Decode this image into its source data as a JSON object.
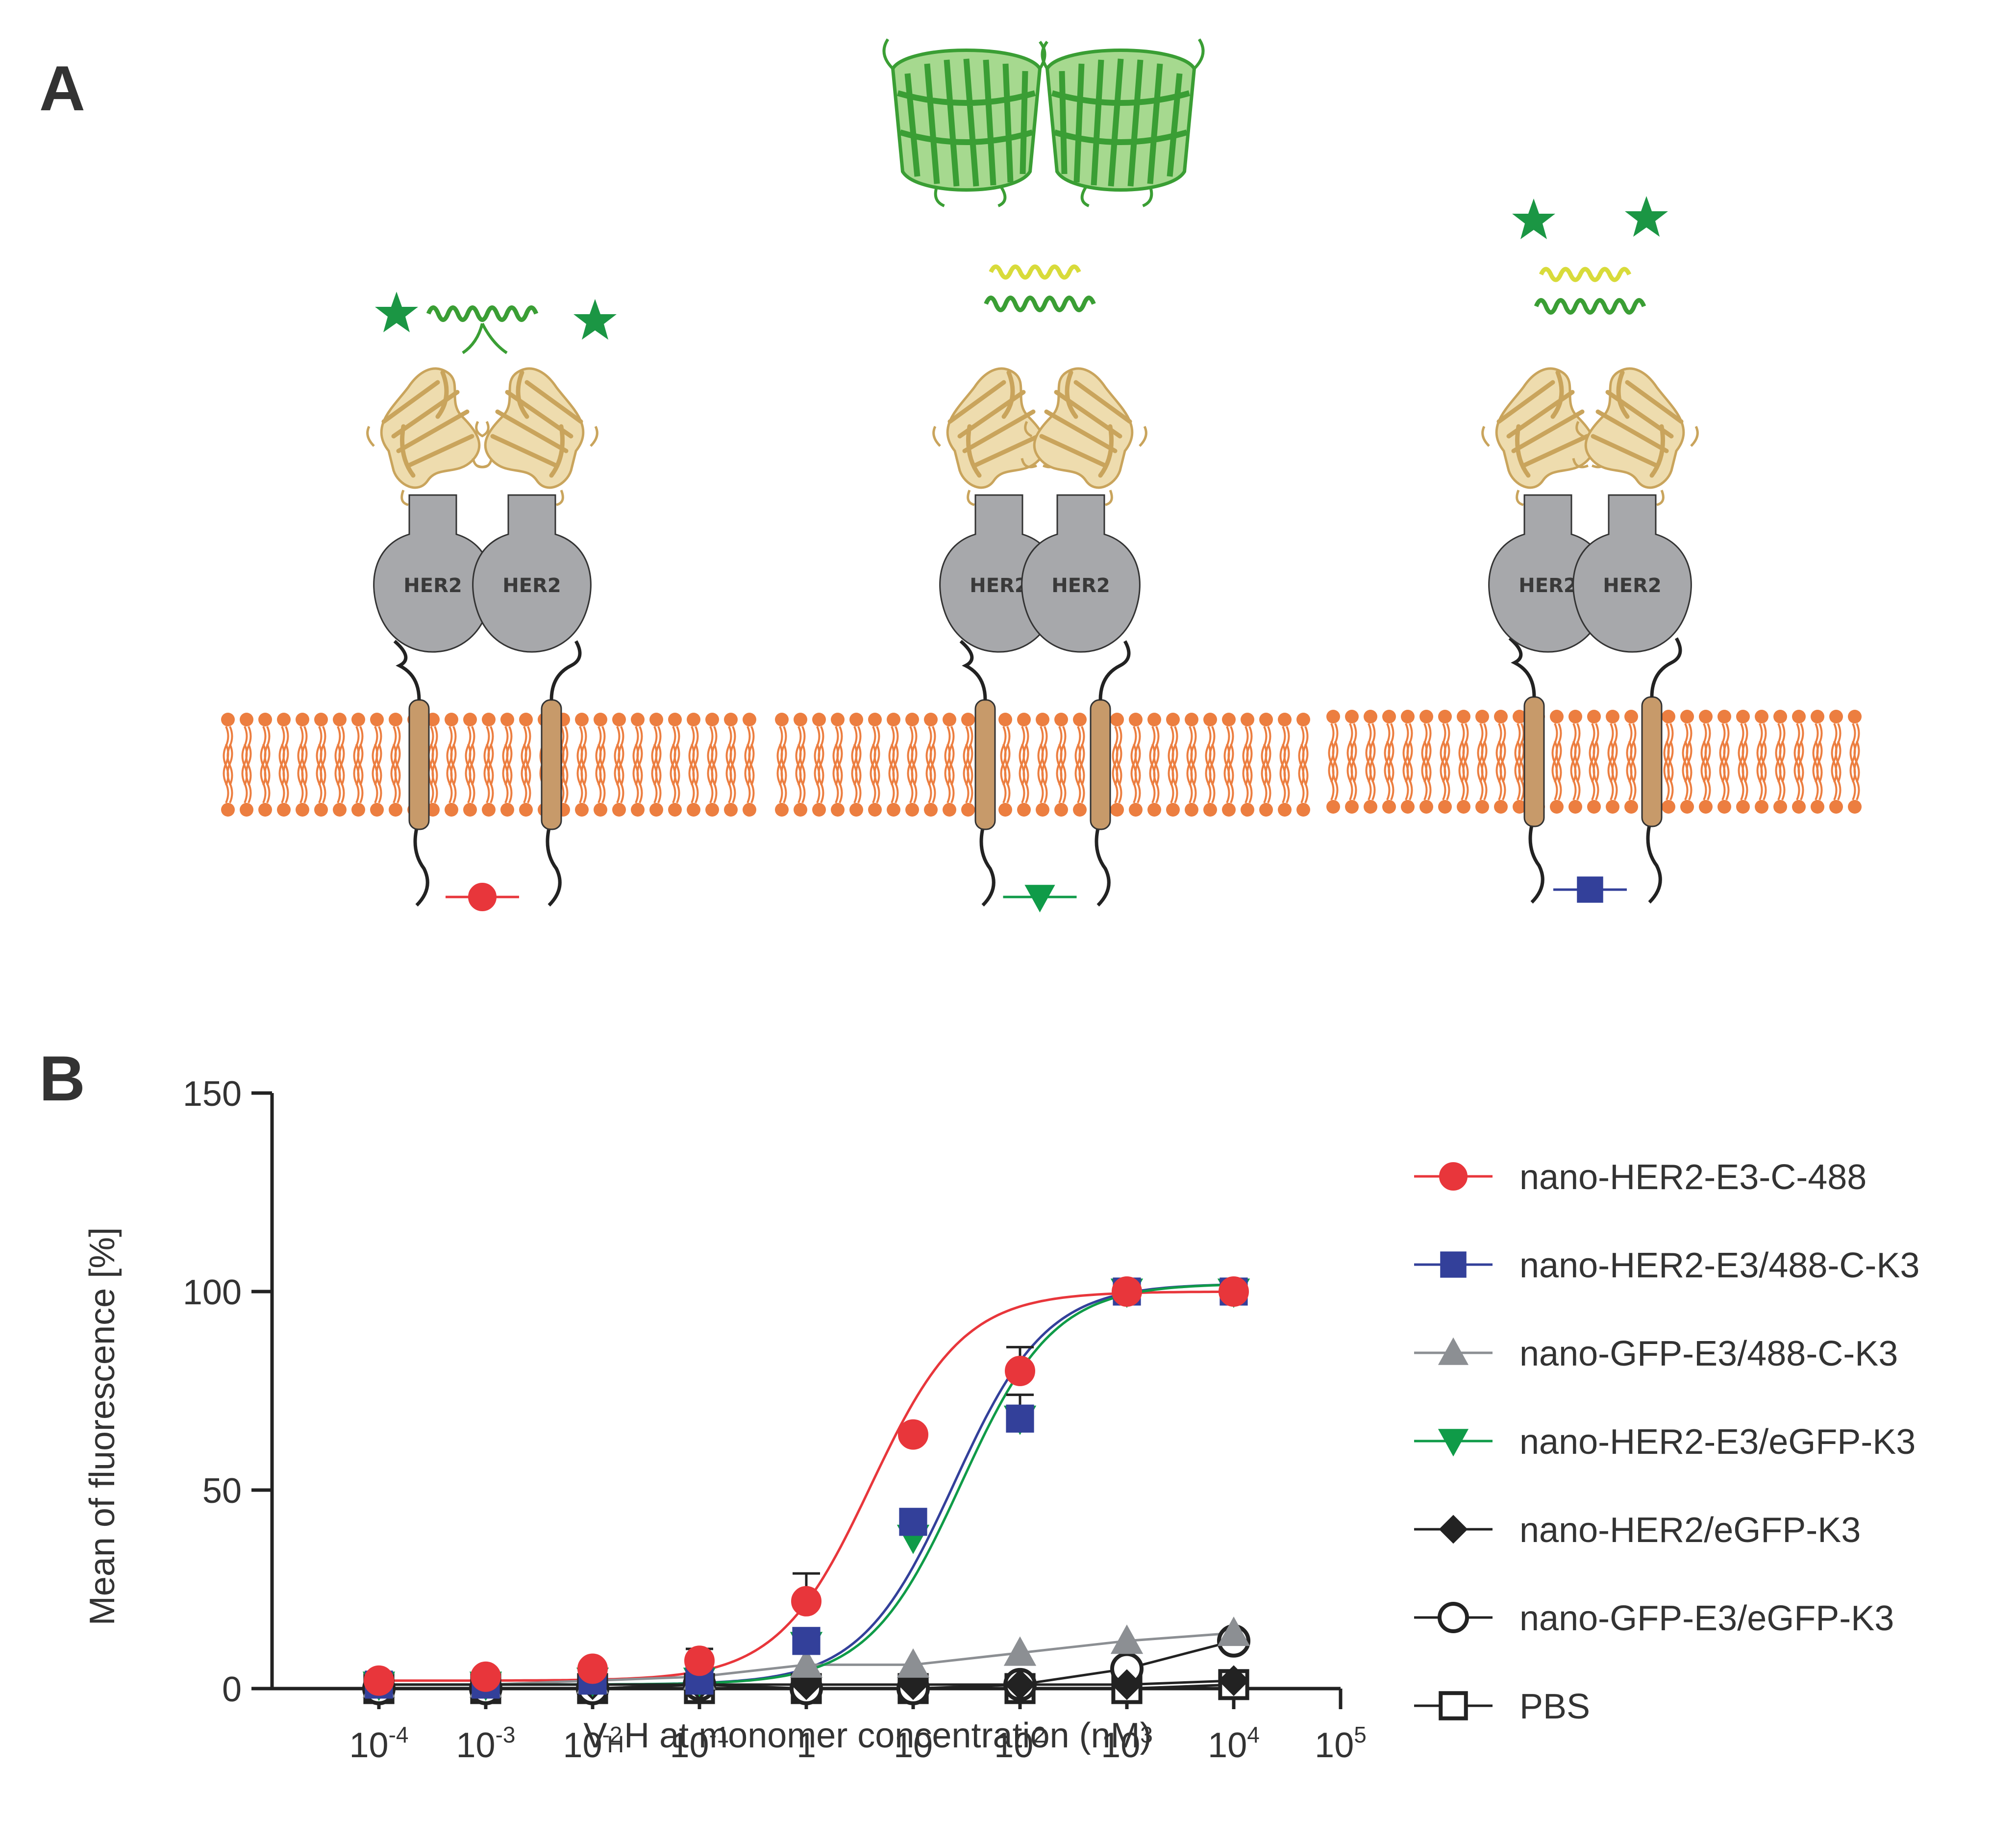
{
  "panel_a": {
    "letter": "A",
    "receptor_label": "HER2",
    "constructs": [
      {
        "top": "helix-stars",
        "marker": "circle",
        "marker_color": "#e8363b"
      },
      {
        "top": "egfp-barrels",
        "marker": "triangle-down",
        "marker_color": "#0f9b48"
      },
      {
        "top": "coil-stars",
        "marker": "square",
        "marker_color": "#33409a"
      }
    ],
    "colors": {
      "membrane": "#ec7e40",
      "tm_helix": "#c79a6a",
      "receptor": "#a7a8ab",
      "nanobody": "#dcc07f",
      "coil_green": "#3a9e34",
      "coil_yellow": "#d8db3a",
      "star": "#1b9644",
      "egfp": "#53ad3b"
    }
  },
  "panel_b": {
    "letter": "B"
  },
  "chart_data": {
    "type": "line",
    "xlabel": "VHH at monomer concentration (nM)",
    "xlabel_parts": {
      "main": "V",
      "sub": "H",
      "rest": "H at monomer concentration (nM)"
    },
    "ylabel": "Mean of fluorescence [%]",
    "x_scale": "log",
    "xlim": [
      1e-05,
      100000
    ],
    "ylim": [
      0,
      150
    ],
    "y_ticks": [
      "0",
      "50",
      "100",
      "150"
    ],
    "x_ticks": [
      {
        "base": "10",
        "exp": "-4",
        "value": 0.0001
      },
      {
        "base": "10",
        "exp": "-3",
        "value": 0.001
      },
      {
        "base": "10",
        "exp": "-2",
        "value": 0.01
      },
      {
        "base": "10",
        "exp": "-1",
        "value": 0.1
      },
      {
        "base": "1",
        "exp": "",
        "value": 1
      },
      {
        "base": "10",
        "exp": "",
        "value": 10
      },
      {
        "base": "10",
        "exp": "2",
        "value": 100
      },
      {
        "base": "10",
        "exp": "3",
        "value": 1000
      },
      {
        "base": "10",
        "exp": "4",
        "value": 10000
      },
      {
        "base": "10",
        "exp": "5",
        "value": 100000
      }
    ],
    "x": [
      0.0001,
      0.001,
      0.01,
      0.1,
      1,
      10,
      100,
      1000,
      10000
    ],
    "legend_position": "right",
    "series": [
      {
        "name": "nano-HER2-E3-C-488",
        "color": "#e8363b",
        "marker": "circle",
        "filled": true,
        "values": [
          2,
          3,
          5,
          7,
          22,
          64,
          80,
          100,
          100
        ],
        "error": [
          0,
          0,
          0,
          3,
          7,
          0,
          6,
          0,
          0
        ],
        "fit": {
          "bottom": 2,
          "top": 100,
          "ec50": 4
        }
      },
      {
        "name": "nano-HER2-E3/488-C-K3",
        "color": "#33409a",
        "marker": "square",
        "filled": true,
        "values": [
          1,
          1,
          2,
          2,
          12,
          42,
          68,
          100,
          100
        ],
        "error": [
          0,
          0,
          0,
          0,
          0,
          0,
          6,
          0,
          0
        ],
        "fit": {
          "bottom": 1,
          "top": 102,
          "ec50": 24
        }
      },
      {
        "name": "nano-GFP-E3/488-C-K3",
        "color": "#8c8f93",
        "marker": "triangle-up",
        "filled": true,
        "values": [
          1,
          1,
          2,
          3,
          6,
          6,
          9,
          12,
          14
        ],
        "error": [
          0,
          0,
          0,
          0,
          0,
          0,
          0,
          0,
          0
        ],
        "fit": {
          "type": "linear"
        }
      },
      {
        "name": "nano-HER2-E3/eGFP-K3",
        "color": "#0f9b48",
        "marker": "triangle-down",
        "filled": true,
        "values": [
          1,
          1,
          2,
          2,
          11,
          38,
          68,
          100,
          100
        ],
        "error": [
          0,
          0,
          0,
          0,
          0,
          0,
          0,
          0,
          0
        ],
        "fit": {
          "bottom": 1,
          "top": 102,
          "ec50": 28
        }
      },
      {
        "name": "nano-HER2/eGFP-K3",
        "color": "#222222",
        "marker": "diamond",
        "filled": true,
        "values": [
          1,
          1,
          1,
          1,
          1,
          1,
          1,
          1,
          2
        ],
        "error": [
          0,
          0,
          0,
          0,
          0,
          0,
          0,
          0,
          0
        ],
        "fit": {
          "type": "linear"
        }
      },
      {
        "name": "nano-GFP-E3/eGFP-K3",
        "color": "#222222",
        "marker": "circle",
        "filled": false,
        "values": [
          0,
          0,
          0,
          1,
          0,
          0,
          1,
          5,
          12
        ],
        "error": [
          0,
          0,
          0,
          0,
          0,
          0,
          0,
          0,
          0
        ],
        "fit": {
          "type": "linear"
        }
      },
      {
        "name": "PBS",
        "color": "#222222",
        "marker": "square",
        "filled": false,
        "values": [
          0,
          0,
          0,
          0,
          0,
          0,
          0,
          0,
          1
        ],
        "error": [
          0,
          0,
          0,
          0,
          0,
          0,
          0,
          0,
          0
        ],
        "fit": {
          "type": "linear"
        }
      }
    ]
  }
}
